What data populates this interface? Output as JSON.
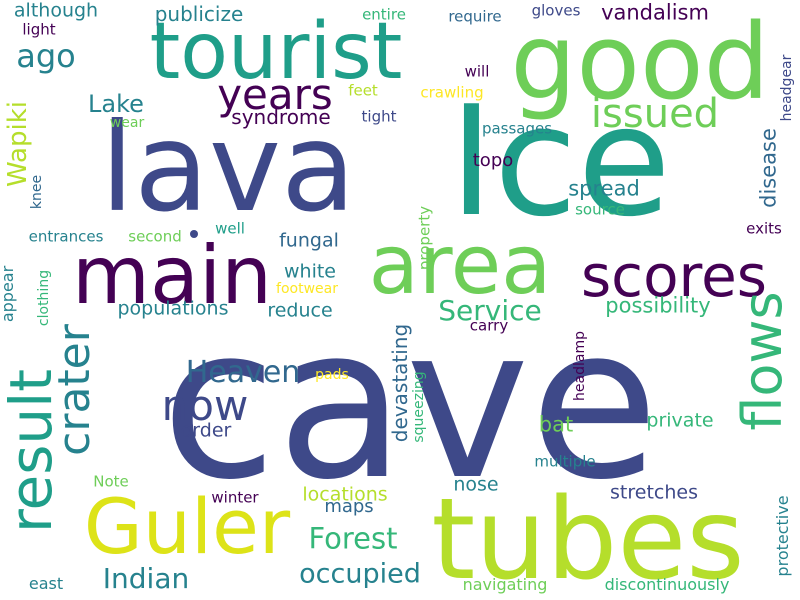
{
  "colors": {
    "background": "#ffffff",
    "dark_purple": "#440154",
    "indigo": "#3e4989",
    "blue": "#31688e",
    "teal": "#26828e",
    "green_teal": "#1f9e89",
    "green": "#35b779",
    "light_green": "#6ece58",
    "lime": "#b5de2b",
    "yellow": "#fde725"
  },
  "words": {
    "cave": "cave",
    "ice": "Ice",
    "lava": "lava",
    "tubes": "tubes",
    "good": "good",
    "tourist": "tourist",
    "main": "main",
    "area": "area",
    "scores": "scores",
    "guler": "Guler",
    "result": "result",
    "flows": "flows",
    "crater": "crater",
    "now": "now",
    "years": "years",
    "issued": "issued",
    "heaven": "Heaven",
    "forest": "Forest",
    "indian": "Indian",
    "occupied": "occupied",
    "service": "Service",
    "ago": "ago",
    "lake": "Lake",
    "wapiki": "Wapiki",
    "fungal": "fungal",
    "white": "white",
    "reduce": "reduce",
    "syndrome": "syndrome",
    "spread": "spread",
    "disease": "disease",
    "possibility": "possibility",
    "populations": "populations",
    "vandalism": "vandalism",
    "publicize": "publicize",
    "although": "although",
    "devastating": "devastating",
    "order": "order",
    "locations": "locations",
    "private": "private",
    "bat": "bat",
    "nose": "nose",
    "stretches": "stretches",
    "maps": "maps",
    "east": "east",
    "navigating": "navigating",
    "discontinuously": "discontinuously",
    "protective": "protective",
    "headgear": "headgear",
    "headlamp": "headlamp",
    "squeezing": "squeezing",
    "multiple": "multiple",
    "winter": "winter",
    "note": "Note",
    "clothing": "clothing",
    "appear": "appear",
    "entrances": "entrances",
    "second": "second",
    "well": "well",
    "knee": "knee",
    "wear": "wear",
    "light": "light",
    "entire": "entire",
    "require": "require",
    "gloves": "gloves",
    "will": "will",
    "feet": "feet",
    "crawling": "crawling",
    "tight": "tight",
    "passages": "passages",
    "topo": "topo",
    "property": "property",
    "source": "source",
    "exits": "exits",
    "footwear": "footwear",
    "carry": "carry",
    "pads": "pads"
  }
}
